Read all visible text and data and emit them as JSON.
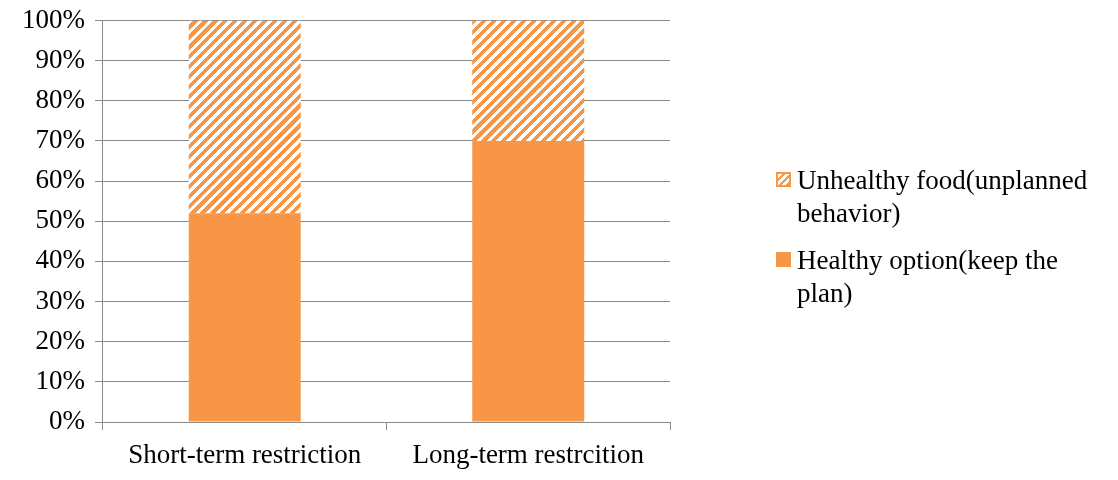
{
  "chart_data": {
    "type": "bar",
    "stacked": true,
    "categories": [
      "Short-term restriction",
      "Long-term restrcition"
    ],
    "series": [
      {
        "name": "Healthy option(keep the plan)",
        "color": "#f79646",
        "values": [
          52,
          70
        ]
      },
      {
        "name": "Unhealthy food(unplanned behavior)",
        "color": "#f79646",
        "values": [
          48,
          30
        ]
      }
    ],
    "ylim": [
      0,
      100
    ],
    "yticks": [
      {
        "value": 0,
        "label": "0%"
      },
      {
        "value": 10,
        "label": "10%"
      },
      {
        "value": 20,
        "label": "20%"
      },
      {
        "value": 30,
        "label": "30%"
      },
      {
        "value": 40,
        "label": "40%"
      },
      {
        "value": 50,
        "label": "50%"
      },
      {
        "value": 60,
        "label": "60%"
      },
      {
        "value": 70,
        "label": "70%"
      },
      {
        "value": 80,
        "label": "80%"
      },
      {
        "value": 90,
        "label": "90%"
      },
      {
        "value": 100,
        "label": "100%"
      }
    ],
    "grid": "y",
    "legend": "right"
  }
}
